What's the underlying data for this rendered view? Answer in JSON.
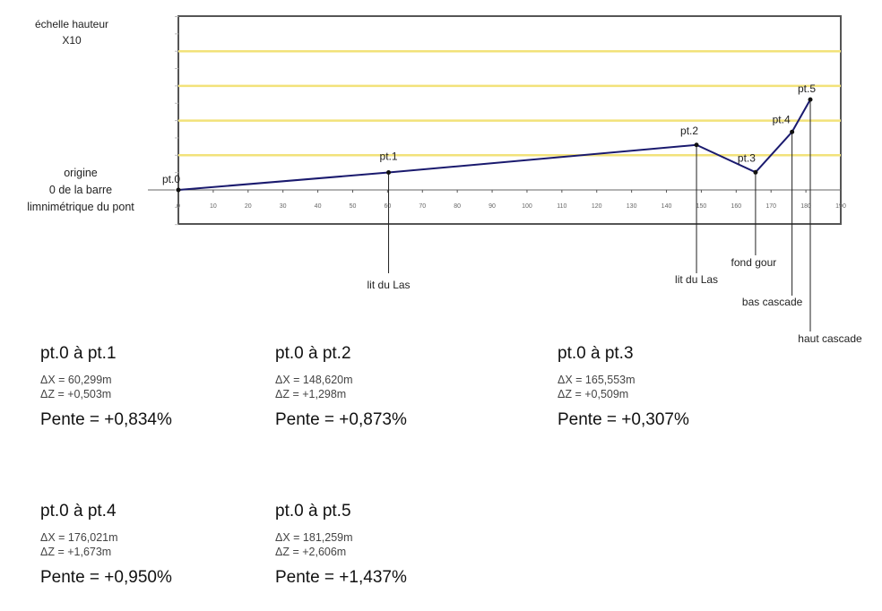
{
  "chart_data": {
    "type": "line",
    "scale_label": [
      "échelle hauteur",
      "X10"
    ],
    "origin_label": [
      "origine",
      "0 de la barre",
      "limnimétrique du pont"
    ],
    "xlim": [
      0,
      190
    ],
    "ylim": [
      -1,
      5
    ],
    "x_ticks": [
      0,
      10,
      20,
      30,
      40,
      50,
      60,
      70,
      80,
      90,
      100,
      110,
      120,
      130,
      140,
      150,
      160,
      170,
      180,
      190
    ],
    "gridlines_y": [
      1,
      2,
      3,
      4
    ],
    "grid_color": "#f2e27a",
    "line_color": "#1a1a6e",
    "points": [
      {
        "name": "pt.0",
        "x": 0,
        "z": 0,
        "annotation": ""
      },
      {
        "name": "pt.1",
        "x": 60.299,
        "z": 0.503,
        "annotation": "lit du Las"
      },
      {
        "name": "pt.2",
        "x": 148.62,
        "z": 1.298,
        "annotation": "lit du Las"
      },
      {
        "name": "pt.3",
        "x": 165.553,
        "z": 0.509,
        "annotation": "fond gour"
      },
      {
        "name": "pt.4",
        "x": 176.021,
        "z": 1.673,
        "annotation": "bas cascade"
      },
      {
        "name": "pt.5",
        "x": 181.259,
        "z": 2.606,
        "annotation": "haut cascade"
      }
    ]
  },
  "results": [
    {
      "title": "pt.0 à pt.1",
      "dx": "ΔX = 60,299m",
      "dz": "ΔZ = +0,503m",
      "pente": "Pente = +0,834%"
    },
    {
      "title": "pt.0 à pt.2",
      "dx": "ΔX = 148,620m",
      "dz": "ΔZ = +1,298m",
      "pente": "Pente = +0,873%"
    },
    {
      "title": "pt.0 à pt.3",
      "dx": "ΔX = 165,553m",
      "dz": "ΔZ = +0,509m",
      "pente": "Pente = +0,307%"
    },
    {
      "title": "pt.0 à pt.4",
      "dx": "ΔX = 176,021m",
      "dz": "ΔZ = +1,673m",
      "pente": "Pente = +0,950%"
    },
    {
      "title": "pt.0 à pt.5",
      "dx": "ΔX = 181,259m",
      "dz": "ΔZ = +2,606m",
      "pente": "Pente = +1,437%"
    }
  ]
}
